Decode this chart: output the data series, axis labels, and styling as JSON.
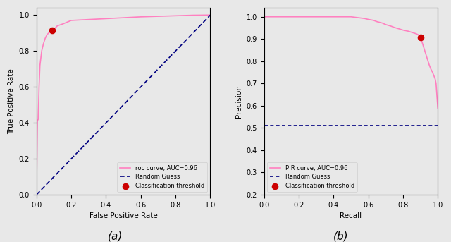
{
  "roc_curve_points": {
    "x": [
      0.0,
      0.005,
      0.01,
      0.015,
      0.02,
      0.03,
      0.04,
      0.05,
      0.06,
      0.07,
      0.08,
      0.09,
      0.1,
      0.12,
      0.15,
      0.2,
      0.3,
      0.4,
      0.5,
      0.6,
      0.7,
      0.8,
      0.9,
      1.0
    ],
    "y": [
      0.0,
      0.41,
      0.42,
      0.6,
      0.72,
      0.8,
      0.84,
      0.87,
      0.89,
      0.9,
      0.91,
      0.915,
      0.92,
      0.94,
      0.95,
      0.97,
      0.975,
      0.98,
      0.985,
      0.99,
      0.993,
      0.996,
      0.999,
      1.0
    ]
  },
  "roc_threshold_point": [
    0.09,
    0.915
  ],
  "pr_curve_points": {
    "x": [
      0.0,
      0.05,
      0.1,
      0.2,
      0.3,
      0.4,
      0.5,
      0.52,
      0.55,
      0.58,
      0.6,
      0.63,
      0.65,
      0.68,
      0.7,
      0.73,
      0.75,
      0.78,
      0.8,
      0.83,
      0.85,
      0.87,
      0.88,
      0.89,
      0.9,
      0.91,
      0.92,
      0.93,
      0.94,
      0.95,
      0.96,
      0.97,
      0.975,
      0.98,
      0.985,
      0.99,
      1.0
    ],
    "y": [
      1.0,
      1.0,
      1.0,
      1.0,
      1.0,
      1.0,
      1.0,
      0.998,
      0.995,
      0.992,
      0.988,
      0.984,
      0.978,
      0.972,
      0.965,
      0.958,
      0.952,
      0.945,
      0.94,
      0.935,
      0.93,
      0.925,
      0.922,
      0.918,
      0.908,
      0.885,
      0.86,
      0.835,
      0.81,
      0.785,
      0.765,
      0.75,
      0.74,
      0.73,
      0.72,
      0.7,
      0.59
    ]
  },
  "pr_threshold_point": [
    0.9,
    0.908
  ],
  "pr_random_guess": 0.51,
  "roc_curve_color": "#ff80c0",
  "pr_curve_color": "#ff80c0",
  "random_guess_color": "#000080",
  "threshold_color": "#cc0000",
  "xlabel_roc": "False Positive Rate",
  "ylabel_roc": "True Positive Rate",
  "xlabel_pr": "Recall",
  "ylabel_pr": "Precision",
  "label_roc_curve": "roc curve, AUC=0.96",
  "label_random_guess": "Random Guess",
  "label_threshold": "Classification threshold",
  "label_pr_curve": "P R curve, AUC=0.96",
  "label_threshold_pr": "Classification threshold",
  "caption_a": "(a)",
  "caption_b": "(b)",
  "fig_background": "#e8e8e8",
  "axes_background": "#e8e8e8",
  "ylim_pr": [
    0.2,
    1.04
  ],
  "yticks_pr": [
    0.2,
    0.3,
    0.4,
    0.5,
    0.6,
    0.7,
    0.8,
    0.9,
    1.0
  ],
  "ylim_roc": [
    0.0,
    1.04
  ],
  "yticks_roc": [
    0.0,
    0.2,
    0.4,
    0.6,
    0.8,
    1.0
  ],
  "xlim": [
    0.0,
    1.0
  ],
  "xticks": [
    0.0,
    0.2,
    0.4,
    0.6,
    0.8,
    1.0
  ]
}
